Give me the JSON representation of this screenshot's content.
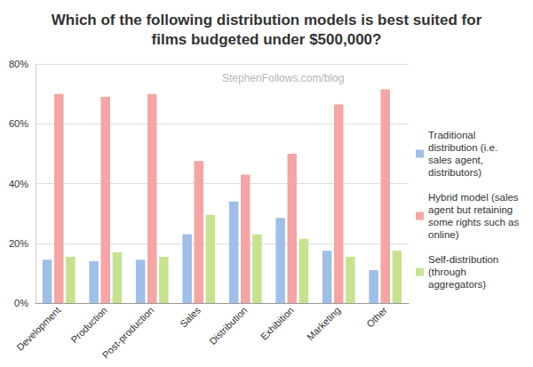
{
  "chart_data": {
    "type": "bar",
    "title": "Which of the following distribution models is best suited for films budgeted under $500,000?",
    "annotations": [
      "StephenFollows.com/blog"
    ],
    "categories": [
      "Development",
      "Production",
      "Post-production",
      "Sales",
      "Distribution",
      "Exhibition",
      "Marketing",
      "Other"
    ],
    "series": [
      {
        "name": "Traditional distribution (i.e. sales agent, distributors)",
        "color": "#9dbfe8",
        "values": [
          14.5,
          14,
          14.5,
          23,
          34,
          28.5,
          17.5,
          11
        ]
      },
      {
        "name": "Hybrid model (sales agent but retaining some rights such as online)",
        "color": "#f5a5a3",
        "values": [
          70,
          69,
          70,
          47.5,
          43,
          50,
          66.5,
          71.5
        ]
      },
      {
        "name": "Self-distribution (through aggregators)",
        "color": "#c6e28f",
        "values": [
          15.5,
          17,
          15.5,
          29.5,
          23,
          21.5,
          15.5,
          17.5
        ]
      }
    ],
    "ylim": [
      0,
      80
    ],
    "yticks": [
      {
        "value": 0,
        "label": "0%"
      },
      {
        "value": 20,
        "label": "20%"
      },
      {
        "value": 40,
        "label": "40%"
      },
      {
        "value": 60,
        "label": "60%"
      },
      {
        "value": 80,
        "label": "80%"
      }
    ],
    "grid": true,
    "legend": "right"
  }
}
